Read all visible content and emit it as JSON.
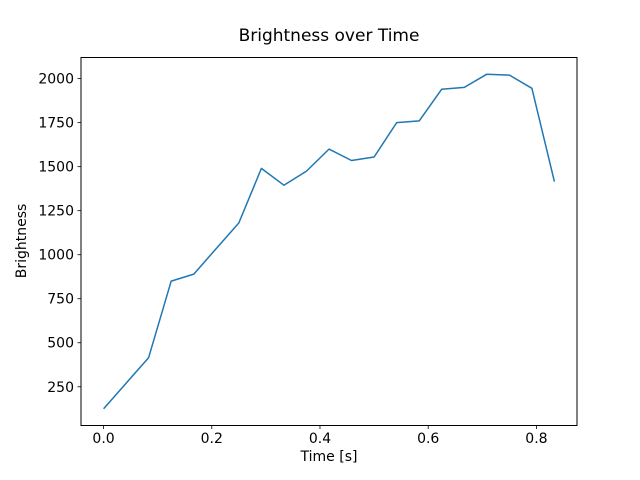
{
  "figure": {
    "background": "#ffffff"
  },
  "chart_data": {
    "type": "line",
    "title": "Brightness over Time",
    "xlabel": "Time [s]",
    "ylabel": "Brightness",
    "grid": false,
    "legend": "none",
    "line_color": "#1f77b4",
    "axis_color": "#000000",
    "text_color": "#000000",
    "xlim": [
      -0.0417,
      0.875
    ],
    "ylim": [
      30,
      2120
    ],
    "xticks": {
      "values": [
        0.0,
        0.2,
        0.4,
        0.6,
        0.8
      ],
      "labels": [
        "0.0",
        "0.2",
        "0.4",
        "0.6",
        "0.8"
      ]
    },
    "yticks": {
      "values": [
        250,
        500,
        750,
        1000,
        1250,
        1500,
        1750,
        2000
      ],
      "labels": [
        "250",
        "500",
        "750",
        "1000",
        "1250",
        "1500",
        "1750",
        "2000"
      ]
    },
    "series": [
      {
        "name": "brightness",
        "color": "#1f77b4",
        "x": [
          0.0,
          0.0417,
          0.0833,
          0.125,
          0.1667,
          0.2083,
          0.25,
          0.2917,
          0.3333,
          0.375,
          0.4167,
          0.4583,
          0.5,
          0.5417,
          0.5833,
          0.625,
          0.6667,
          0.7083,
          0.75,
          0.7917,
          0.8333
        ],
        "y": [
          125,
          270,
          415,
          850,
          890,
          1035,
          1180,
          1490,
          1395,
          1475,
          1600,
          1535,
          1555,
          1750,
          1760,
          1940,
          1950,
          2025,
          2020,
          1945,
          1415
        ]
      }
    ]
  }
}
